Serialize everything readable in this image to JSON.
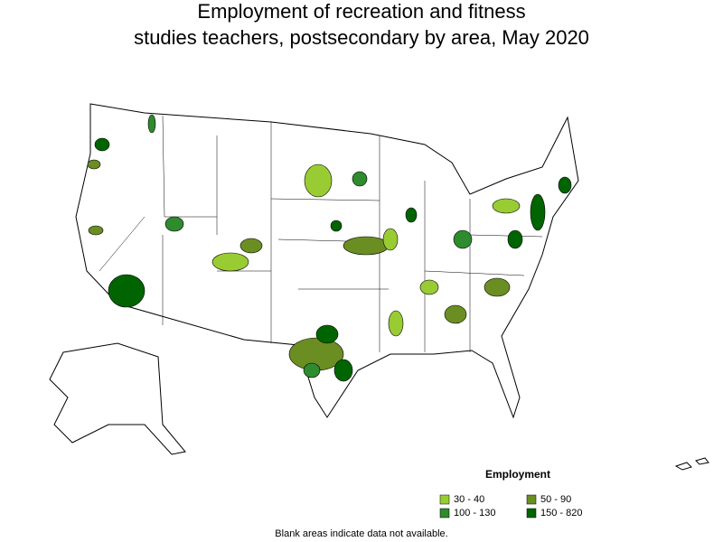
{
  "title": [
    "Employment of recreation and fitness",
    "studies teachers, postsecondary by area, May 2020"
  ],
  "legend": {
    "title": "Employment",
    "items": [
      {
        "label": "30 - 40",
        "color": "#99cc33"
      },
      {
        "label": "50 - 90",
        "color": "#6b8e23"
      },
      {
        "label": "100 - 130",
        "color": "#2e8b2e"
      },
      {
        "label": "150 - 820",
        "color": "#006400"
      }
    ]
  },
  "note": "Blank areas indicate data not available."
}
